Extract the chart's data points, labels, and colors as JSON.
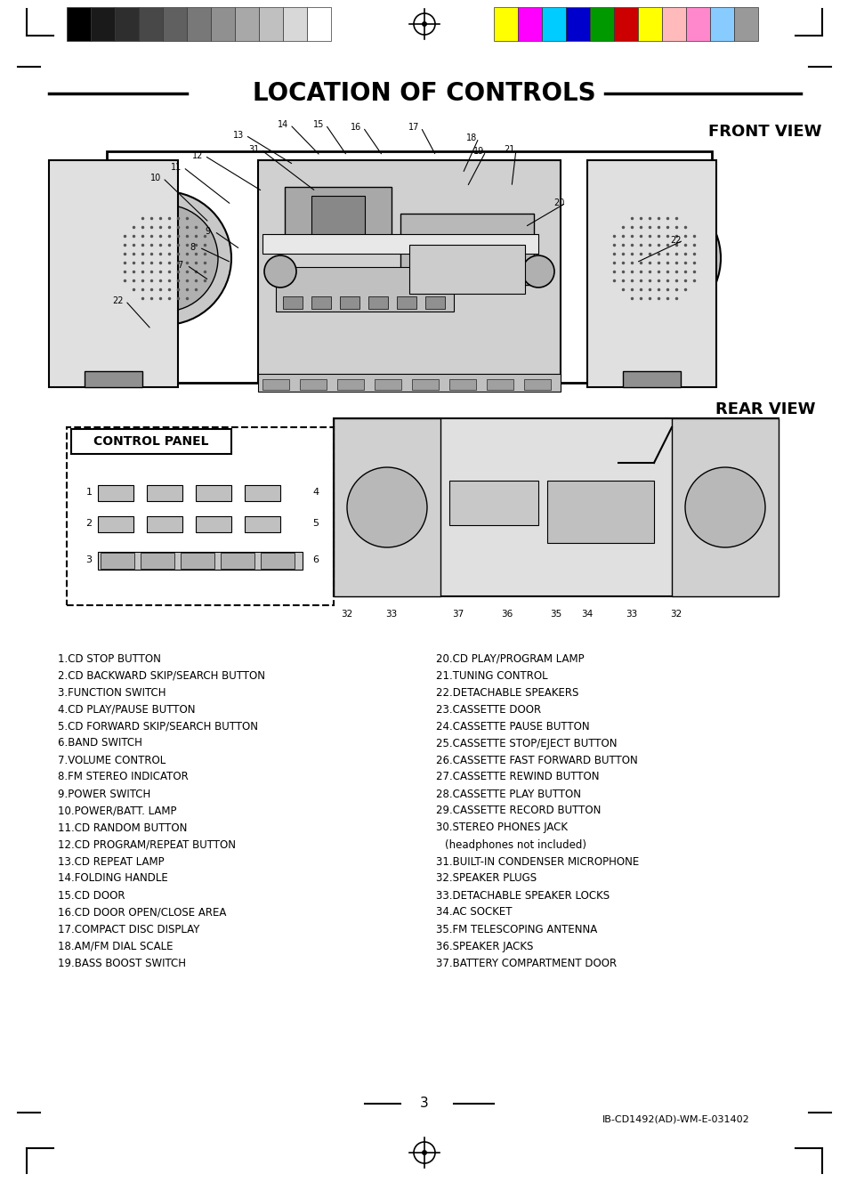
{
  "title": "LOCATION OF CONTROLS",
  "front_view_label": "FRONT VIEW",
  "rear_view_label": "REAR VIEW",
  "control_panel_label": "CONTROL PANEL",
  "page_number": "3",
  "doc_id": "IB-CD1492(AD)-WM-E-031402",
  "bg_color": "#ffffff",
  "text_color": "#000000",
  "grayscale_colors": [
    "#000000",
    "#1a1a1a",
    "#333333",
    "#4d4d4d",
    "#666666",
    "#808080",
    "#999999",
    "#b3b3b3",
    "#cccccc",
    "#e6e6e6",
    "#ffffff"
  ],
  "color_bars": [
    "#ffff00",
    "#ff00ff",
    "#00ffff",
    "#0000cc",
    "#008800",
    "#cc0000",
    "#ffff00",
    "#ffaaaa",
    "#ff99cc",
    "#aaddff",
    "#aaaaaa"
  ],
  "color_bars2": [
    "#ffff00",
    "#ff00cc",
    "#00ccff",
    "#0000bb",
    "#009900",
    "#dd0000",
    "#ffff00",
    "#ffbbbb",
    "#ff88cc",
    "#88ccff",
    "#999999"
  ],
  "left_items": [
    "1.CD STOP BUTTON",
    "2.CD BACKWARD SKIP/SEARCH BUTTON",
    "3.FUNCTION SWITCH",
    "4.CD PLAY/PAUSE BUTTON",
    "5.CD FORWARD SKIP/SEARCH BUTTON",
    "6.BAND SWITCH",
    "7.VOLUME CONTROL",
    "8.FM STEREO INDICATOR",
    "9.POWER SWITCH",
    "10.POWER/BATT. LAMP",
    "11.CD RANDOM BUTTON",
    "12.CD PROGRAM/REPEAT BUTTON",
    "13.CD REPEAT LAMP",
    "14.FOLDING HANDLE",
    "15.CD DOOR",
    "16.CD DOOR OPEN/CLOSE AREA",
    "17.COMPACT DISC DISPLAY",
    "18.AM/FM DIAL SCALE",
    "19.BASS BOOST SWITCH"
  ],
  "right_items": [
    "20.CD PLAY/PROGRAM LAMP",
    "21.TUNING CONTROL",
    "22.DETACHABLE SPEAKERS",
    "23.CASSETTE DOOR",
    "24.CASSETTE PAUSE BUTTON",
    "25.CASSETTE STOP/EJECT BUTTON",
    "26.CASSETTE FAST FORWARD BUTTON",
    "27.CASSETTE REWIND BUTTON",
    "28.CASSETTE PLAY BUTTON",
    "29.CASSETTE RECORD BUTTON",
    "30.STEREO PHONES JACK",
    "   (headphones not included)",
    "31.BUILT-IN CONDENSER MICROPHONE",
    "32.SPEAKER PLUGS",
    "33.DETACHABLE SPEAKER LOCKS",
    "34.AC SOCKET",
    "35.FM TELESCOPING ANTENNA",
    "36.SPEAKER JACKS",
    "37.BATTERY COMPARTMENT DOOR"
  ]
}
